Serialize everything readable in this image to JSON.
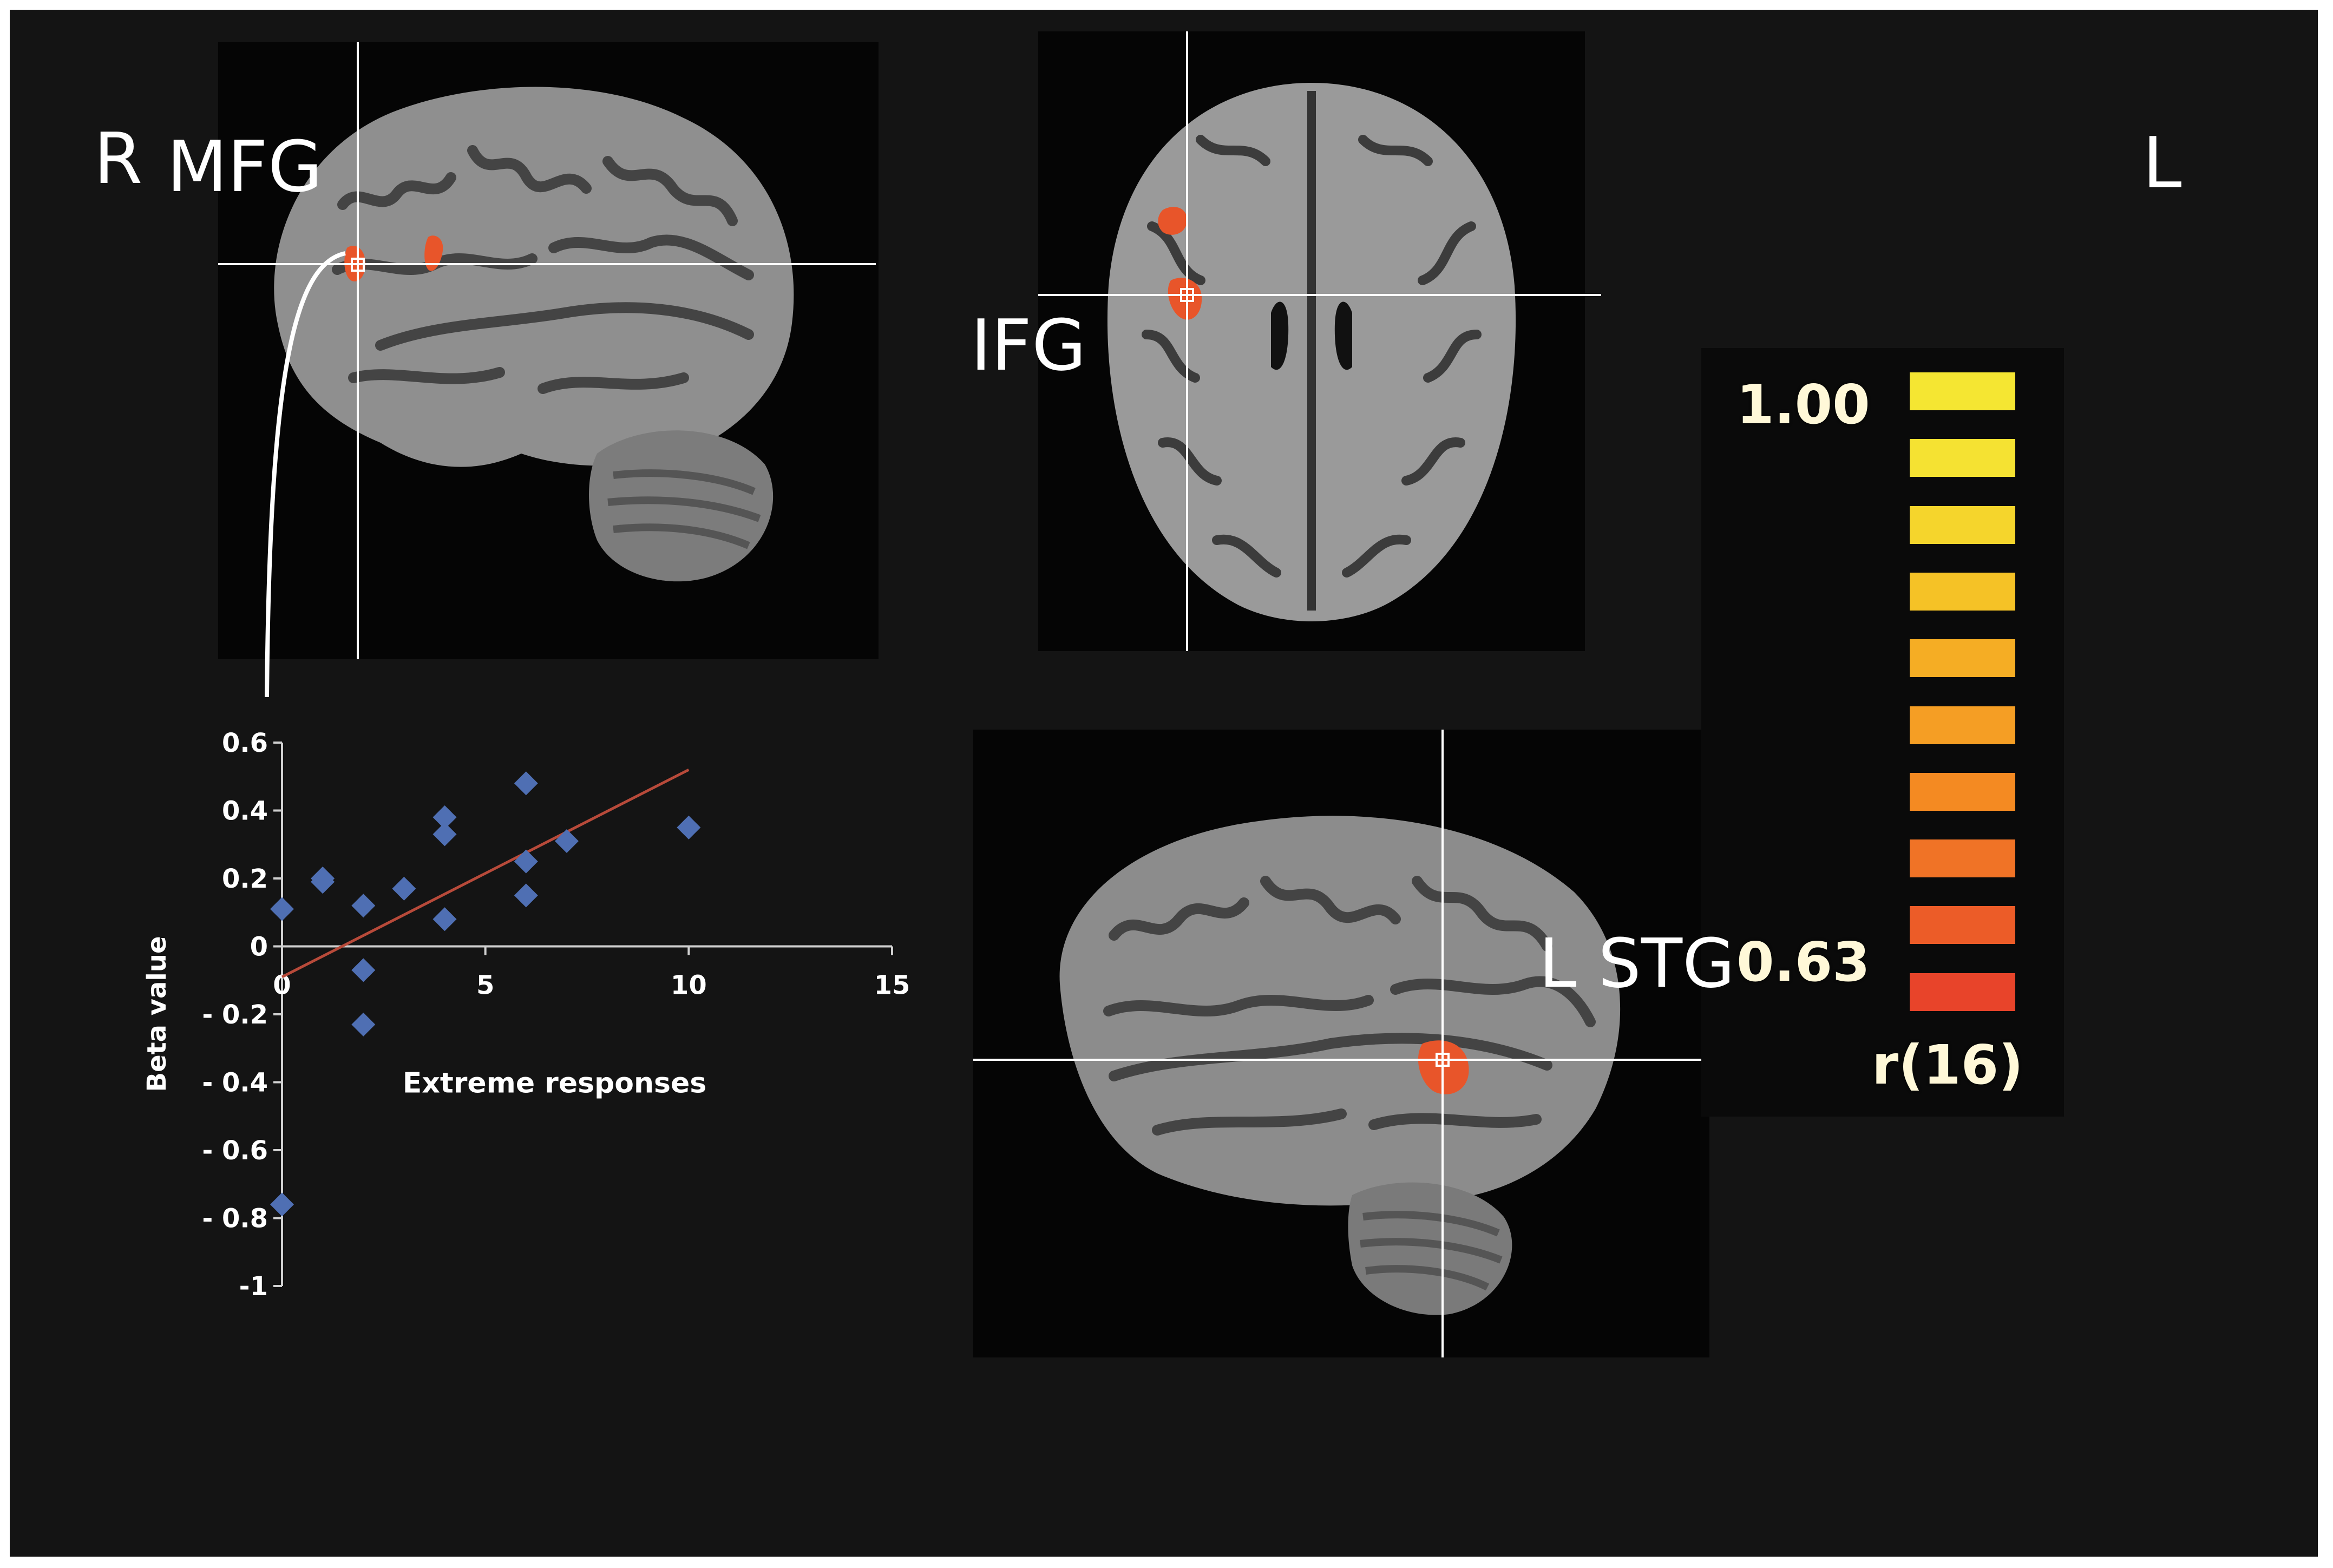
{
  "labels": {
    "right": "R",
    "left": "L",
    "mfg": "MFG",
    "ifg": "IFG",
    "lstg": "L STG"
  },
  "colorbar": {
    "max_label": "1.00",
    "min_label": "0.63",
    "stat_label": "r(16)",
    "colors": [
      "#f5e632",
      "#f5e232",
      "#f5d52c",
      "#f5c226",
      "#f5ad24",
      "#f59e24",
      "#f48a22",
      "#f07326",
      "#ec5c28",
      "#e8442a"
    ]
  },
  "colors": {
    "activation": "#e8552a",
    "points": "#4f6fb3",
    "trend": "#b84a3a",
    "axis": "#d0d0d0",
    "crosshair": "#ffffff"
  },
  "chart_data": {
    "type": "scatter",
    "title": "",
    "xlabel": "Extreme responses",
    "ylabel": "Beta value",
    "xlim": [
      0,
      15
    ],
    "ylim": [
      -1,
      0.6
    ],
    "xticks": [
      0,
      5,
      10,
      15
    ],
    "yticks": [
      0.6,
      0.4,
      0.2,
      0,
      -0.2,
      -0.4,
      -0.6,
      -0.8,
      -1
    ],
    "xtick_labels": [
      "0",
      "5",
      "10",
      "15"
    ],
    "ytick_labels": [
      "0.6",
      "0.4",
      "0.2",
      "0",
      "- 0.2",
      "- 0.4",
      "- 0.6",
      "- 0.8",
      "-1"
    ],
    "points": [
      {
        "x": 0,
        "y": 0.11
      },
      {
        "x": 0,
        "y": -0.76
      },
      {
        "x": 1,
        "y": 0.2
      },
      {
        "x": 1,
        "y": 0.19
      },
      {
        "x": 2,
        "y": 0.12
      },
      {
        "x": 2,
        "y": -0.07
      },
      {
        "x": 2,
        "y": -0.23
      },
      {
        "x": 3,
        "y": 0.17
      },
      {
        "x": 4,
        "y": 0.38
      },
      {
        "x": 4,
        "y": 0.33
      },
      {
        "x": 4,
        "y": 0.08
      },
      {
        "x": 6,
        "y": 0.48
      },
      {
        "x": 6,
        "y": 0.25
      },
      {
        "x": 6,
        "y": 0.15
      },
      {
        "x": 7,
        "y": 0.31
      },
      {
        "x": 10,
        "y": 0.35
      }
    ],
    "trendline": {
      "x": [
        0,
        10
      ],
      "y": [
        -0.09,
        0.52
      ]
    },
    "grid": false,
    "legend": "none"
  }
}
